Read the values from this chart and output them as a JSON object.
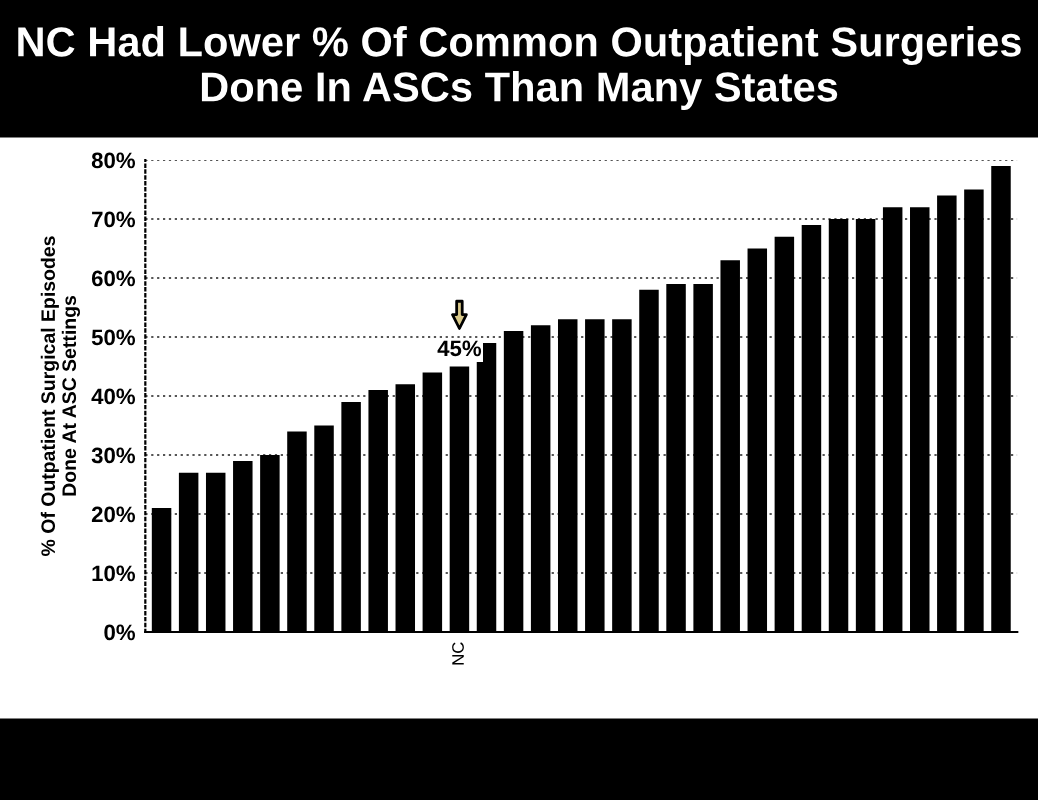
{
  "chart_data": {
    "type": "bar",
    "title": "NC Had Lower % Of Common Outpatient Surgeries Done In ASCs Than Many States",
    "ylabel": "% Of Outpatient Surgical Episodes\nDone At ASC Settings",
    "categories": [
      null,
      null,
      null,
      null,
      null,
      null,
      null,
      null,
      null,
      null,
      null,
      "NC",
      null,
      null,
      null,
      null,
      null,
      null,
      null,
      null,
      null,
      null,
      null,
      null,
      null,
      null,
      null,
      null,
      null,
      null,
      null,
      null
    ],
    "values": [
      21,
      27,
      27,
      29,
      30,
      34,
      35,
      39,
      41,
      42,
      44,
      45,
      49,
      51,
      52,
      53,
      53,
      53,
      58,
      59,
      59,
      63,
      65,
      67,
      69,
      70,
      70,
      72,
      72,
      74,
      75,
      79
    ],
    "color": "#000000",
    "ylim": [
      0,
      80
    ],
    "yticks": [
      {
        "value": 0,
        "label": "0%"
      },
      {
        "value": 10,
        "label": "10%"
      },
      {
        "value": 20,
        "label": "20%"
      },
      {
        "value": 30,
        "label": "30%"
      },
      {
        "value": 40,
        "label": "40%"
      },
      {
        "value": 50,
        "label": "50%"
      },
      {
        "value": 60,
        "label": "60%"
      },
      {
        "value": 70,
        "label": "70%"
      },
      {
        "value": 80,
        "label": "80%"
      }
    ],
    "grid": "y",
    "annotations": [
      {
        "text": "45%",
        "x": "NC",
        "y": 45
      }
    ]
  }
}
